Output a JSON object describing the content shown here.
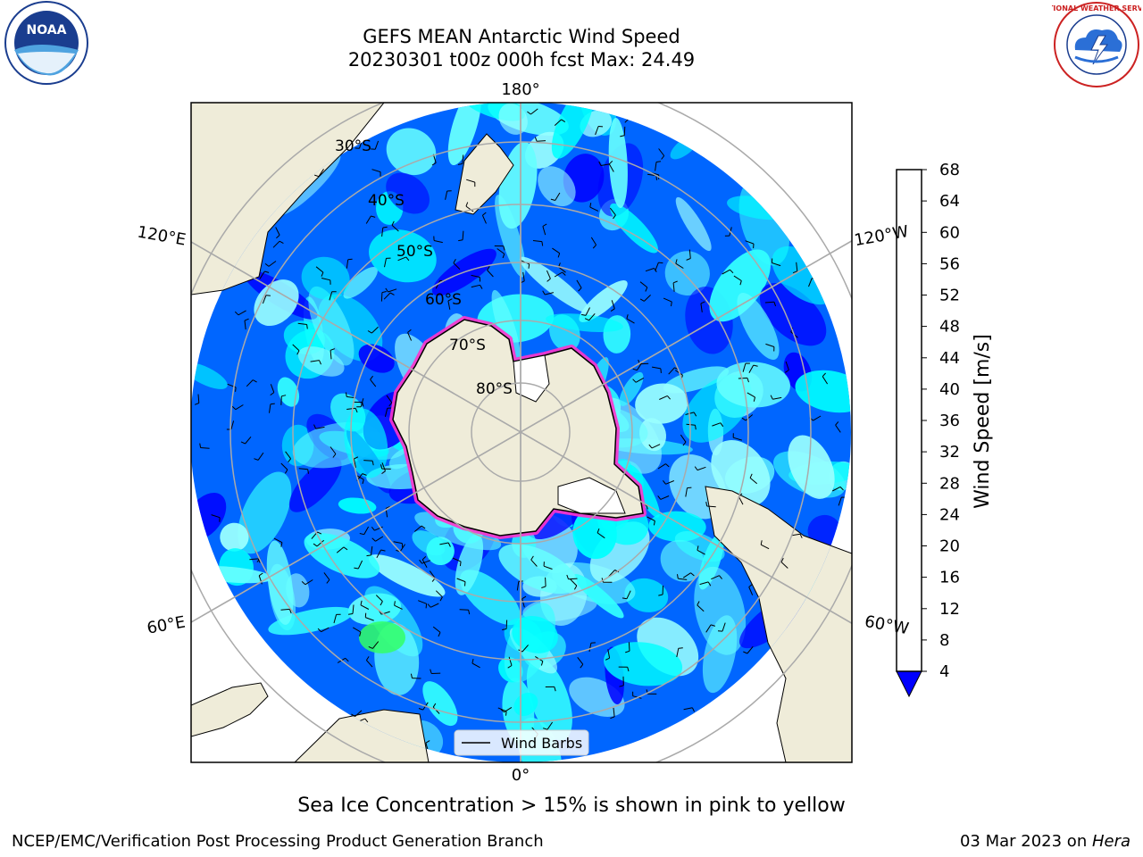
{
  "header": {
    "title": "GEFS MEAN Antarctic Wind Speed",
    "subtitle": "20230301 t00z 000h fcst   Max: 24.49"
  },
  "logos": {
    "left": "noaa-logo",
    "left_text": "NOAA",
    "right": "nws-logo",
    "right_text": "NATIONAL WEATHER SERVICE"
  },
  "map": {
    "projection": "south-polar-stereographic",
    "lat_labels": [
      "30°S",
      "40°S",
      "50°S",
      "60°S",
      "70°S",
      "80°S"
    ],
    "lon_labels": {
      "top": "180°",
      "bottom": "0°",
      "upper_left": "120°E",
      "upper_right": "120°W",
      "lower_left": "60°E",
      "lower_right": "60°W"
    },
    "legend_label": "Wind Barbs",
    "colors": {
      "land": "#efecd9",
      "ice": "#ffffff",
      "ice_edge": "#ff33cc",
      "graticule": "#aaaaaa"
    }
  },
  "colorbar": {
    "label": "Wind Speed [m/s]",
    "ticks": [
      "4",
      "8",
      "12",
      "16",
      "20",
      "24",
      "28",
      "32",
      "36",
      "40",
      "44",
      "48",
      "52",
      "56",
      "60",
      "64",
      "68"
    ],
    "colors": [
      "#0066ff",
      "#00ffff",
      "#33ffff",
      "#66ffff",
      "#99ffff",
      "#33ff66",
      "#33ff00",
      "#00ff00",
      "#66ff00",
      "#ccff00",
      "#eeff00",
      "#ffff00",
      "#ffcc00",
      "#ff9900",
      "#ff6600",
      "#ff3300",
      "#ff0000"
    ],
    "extend_color": "#0000ff"
  },
  "caption": "Sea Ice Concentration > 15% is shown in pink to yellow",
  "footer": {
    "left": "NCEP/EMC/Verification Post Processing Product Generation Branch",
    "date": "03 Mar 2023 on ",
    "machine": "Hera"
  }
}
